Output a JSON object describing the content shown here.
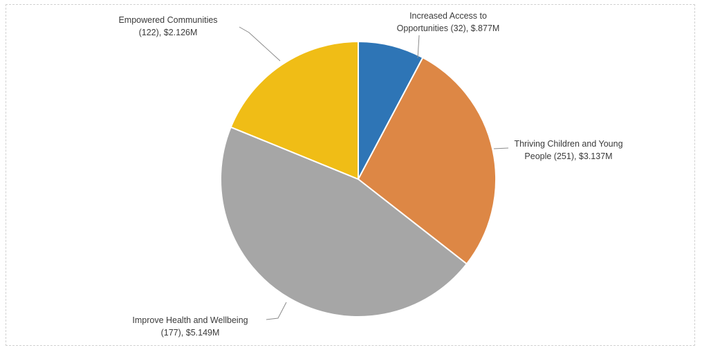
{
  "chart_data": {
    "type": "pie",
    "start_angle_deg": 0,
    "direction": "clockwise",
    "slices": [
      {
        "name": "Increased Access to Opportunities",
        "count": 32,
        "value": 0.877,
        "color": "#2e75b6",
        "label_lines": [
          "Increased Access to",
          "Opportunities (32), $.877M"
        ]
      },
      {
        "name": "Thriving Children and Young People",
        "count": 251,
        "value": 3.137,
        "color": "#dd8745",
        "label_lines": [
          "Thriving Children and Young",
          "People (251), $3.137M"
        ]
      },
      {
        "name": "Improve Health and Wellbeing",
        "count": 177,
        "value": 5.149,
        "color": "#a6a6a6",
        "label_lines": [
          "Improve Health and Wellbeing",
          "(177), $5.149M"
        ]
      },
      {
        "name": "Empowered Communities",
        "count": 122,
        "value": 2.126,
        "color": "#f0bd16",
        "label_lines": [
          "Empowered Communities",
          "(122), $2.126M"
        ]
      }
    ]
  }
}
